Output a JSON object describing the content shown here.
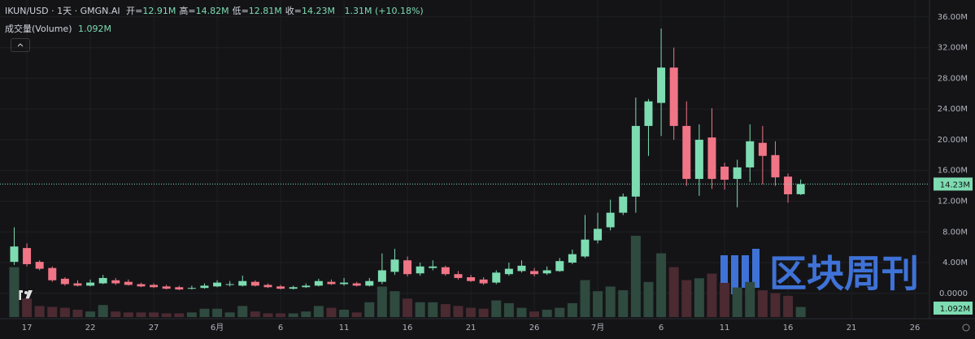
{
  "chart_data": {
    "type": "candlestick",
    "header": {
      "symbol": "IKUN/USD · 1天 · GMGN.AI",
      "ohlc": [
        {
          "label": "开=",
          "value": "12.91M"
        },
        {
          "label": "高=",
          "value": "14.82M"
        },
        {
          "label": "低=",
          "value": "12.81M"
        },
        {
          "label": "收=",
          "value": "14.23M"
        }
      ],
      "change": "1.31M (+10.18%)",
      "volume_label": "成交量(Volume)",
      "volume_value": "1.092M"
    },
    "watermark": "区块周刊",
    "x": [
      16,
      17,
      18,
      19,
      20,
      21,
      22,
      23,
      24,
      25,
      26,
      27,
      28,
      29,
      30,
      31,
      32,
      33,
      34,
      35,
      36,
      37,
      38,
      39,
      40,
      41,
      42,
      43,
      44,
      45,
      46,
      47,
      48,
      49,
      50,
      51,
      52,
      53,
      54,
      55,
      56,
      57,
      58,
      59,
      60,
      61,
      62,
      63,
      64,
      65,
      66,
      67,
      68,
      69,
      70,
      71,
      72,
      73,
      74,
      75,
      76,
      77,
      78
    ],
    "open": [
      4.1,
      5.9,
      4.1,
      3.3,
      1.9,
      1.3,
      1.0,
      1.3,
      1.7,
      1.5,
      1.2,
      1.1,
      0.9,
      0.8,
      0.6,
      0.7,
      0.9,
      1.1,
      1.0,
      1.5,
      1.1,
      0.9,
      0.6,
      0.8,
      1.0,
      1.5,
      1.2,
      1.3,
      1.0,
      1.5,
      2.8,
      4.3,
      2.6,
      3.3,
      3.4,
      2.5,
      2.1,
      1.8,
      1.4,
      2.5,
      2.9,
      2.9,
      2.6,
      2.9,
      4.0,
      4.8,
      6.9,
      8.6,
      10.5,
      12.6,
      21.8,
      24.8,
      29.4,
      21.8,
      14.9,
      20.3,
      16.5,
      14.9,
      16.4,
      19.6,
      18.0,
      15.2,
      12.91
    ],
    "high": [
      8.6,
      6.5,
      4.3,
      3.5,
      2.1,
      1.7,
      1.8,
      2.4,
      2.0,
      1.8,
      1.4,
      1.3,
      1.1,
      1.0,
      1.0,
      1.3,
      1.7,
      1.6,
      2.3,
      1.7,
      1.3,
      1.1,
      1.0,
      1.3,
      1.9,
      1.8,
      2.0,
      1.5,
      2.0,
      5.2,
      5.8,
      4.8,
      4.0,
      4.3,
      3.6,
      2.9,
      2.4,
      2.1,
      3.0,
      4.0,
      4.3,
      3.3,
      3.5,
      4.6,
      5.7,
      10.2,
      10.5,
      12.2,
      13.0,
      25.5,
      25.3,
      34.5,
      32.0,
      25.0,
      22.0,
      24.1,
      17.0,
      17.4,
      22.0,
      21.8,
      19.8,
      15.6,
      14.82
    ],
    "low": [
      3.7,
      3.5,
      3.0,
      1.5,
      1.0,
      0.9,
      0.9,
      1.2,
      1.1,
      1.0,
      0.8,
      0.7,
      0.5,
      0.4,
      0.5,
      0.6,
      0.8,
      0.9,
      0.9,
      0.9,
      0.7,
      0.5,
      0.5,
      0.7,
      0.9,
      1.1,
      1.0,
      0.9,
      0.9,
      1.2,
      2.4,
      2.2,
      2.3,
      3.0,
      2.3,
      1.8,
      1.5,
      1.1,
      1.2,
      2.3,
      2.7,
      2.2,
      2.4,
      2.8,
      3.8,
      4.6,
      6.5,
      8.2,
      10.2,
      10.5,
      17.9,
      20.5,
      20.0,
      14.0,
      12.7,
      13.6,
      13.5,
      11.2,
      14.5,
      14.2,
      14.0,
      11.8,
      12.81
    ],
    "close": [
      6.1,
      3.8,
      3.2,
      1.7,
      1.2,
      1.0,
      1.4,
      2.0,
      1.3,
      1.1,
      0.9,
      0.8,
      0.6,
      0.5,
      0.7,
      1.0,
      1.4,
      1.2,
      1.6,
      1.0,
      0.8,
      0.6,
      0.8,
      1.0,
      1.6,
      1.2,
      1.4,
      1.0,
      1.6,
      3.0,
      4.4,
      2.5,
      3.5,
      3.5,
      2.5,
      2.0,
      1.6,
      1.3,
      2.7,
      3.2,
      3.6,
      2.5,
      3.0,
      4.2,
      5.1,
      7.0,
      8.4,
      10.5,
      12.6,
      21.8,
      25.0,
      29.4,
      21.8,
      14.9,
      20.0,
      14.9,
      14.8,
      16.4,
      19.8,
      17.9,
      15.1,
      12.9,
      14.23
    ],
    "volume": [
      5.4,
      2.0,
      1.2,
      1.1,
      1.0,
      0.8,
      0.6,
      1.3,
      0.6,
      0.5,
      0.5,
      0.5,
      0.4,
      0.4,
      0.5,
      0.9,
      0.9,
      0.5,
      1.2,
      0.6,
      0.4,
      0.4,
      0.4,
      0.6,
      1.2,
      1.0,
      0.8,
      0.5,
      1.6,
      3.3,
      2.8,
      2.0,
      1.6,
      1.6,
      1.4,
      1.2,
      1.0,
      0.9,
      1.8,
      1.5,
      1.0,
      0.6,
      0.8,
      1.0,
      1.5,
      4.0,
      2.8,
      3.3,
      2.9,
      8.8,
      3.8,
      6.9,
      5.4,
      4.0,
      4.2,
      4.7,
      3.7,
      3.2,
      3.8,
      2.9,
      2.6,
      2.3,
      1.092
    ],
    "last_price": 14.23,
    "last_price_label": "14.23M",
    "xlim": [
      14.88,
      88.15
    ],
    "xticks": [
      17,
      22,
      27,
      {
        "value": 32,
        "label": "6月"
      },
      {
        "value": 37,
        "label": "6"
      },
      {
        "value": 42,
        "label": "11"
      },
      {
        "value": 47,
        "label": "16"
      },
      {
        "value": 52,
        "label": "21"
      },
      {
        "value": 57,
        "label": "26"
      },
      {
        "value": 62,
        "label": "7月"
      },
      {
        "value": 67,
        "label": "6"
      },
      {
        "value": 72,
        "label": "11"
      },
      {
        "value": 77,
        "label": "16"
      },
      {
        "value": 82,
        "label": "21"
      },
      {
        "value": 87,
        "label": "26"
      }
    ],
    "ylim": [
      -3.3,
      38.2
    ],
    "yticks": [
      {
        "value": 0,
        "label": "0.0000"
      },
      {
        "value": 4,
        "label": "4.00M"
      },
      {
        "value": 8,
        "label": "8.00M"
      },
      {
        "value": 12,
        "label": "12.00M"
      },
      {
        "value": 16,
        "label": "16.00M"
      },
      {
        "value": 20,
        "label": "20.00M"
      },
      {
        "value": 24,
        "label": "24.00M"
      },
      {
        "value": 28,
        "label": "28.00M"
      },
      {
        "value": 32,
        "label": "32.00M"
      },
      {
        "value": 36,
        "label": "36.00M"
      }
    ],
    "grid": true,
    "up_color": "#7ddcb1",
    "down_color": "#f07586",
    "volume_up_color": "#2f4a3f",
    "volume_down_color": "#4b2a31"
  }
}
